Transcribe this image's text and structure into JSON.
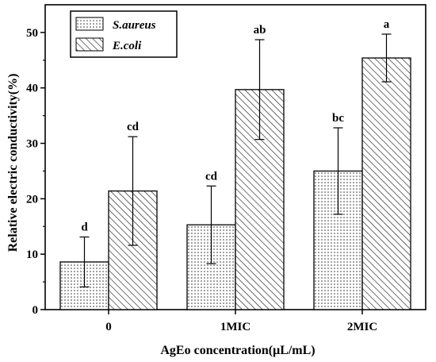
{
  "chart_data": {
    "type": "bar",
    "title": "",
    "xlabel": "AgEo concentration(μL/mL)",
    "ylabel": "Relative electric conductivity(%)",
    "ylim": [
      0,
      55
    ],
    "yticks": [
      0,
      10,
      20,
      30,
      40,
      50
    ],
    "categories": [
      "0",
      "1MIC",
      "2MIC"
    ],
    "legend_position": "top-left",
    "grid": false,
    "series": [
      {
        "name": "S.aureus",
        "pattern": "dots",
        "values": [
          8.6,
          15.3,
          25.0
        ],
        "errors": [
          4.5,
          7.0,
          7.8
        ],
        "labels": [
          "d",
          "cd",
          "bc"
        ]
      },
      {
        "name": "E.coli",
        "pattern": "hatch",
        "values": [
          21.4,
          39.7,
          45.4
        ],
        "errors": [
          9.8,
          9.0,
          4.3
        ],
        "labels": [
          "cd",
          "ab",
          "a"
        ]
      }
    ]
  }
}
